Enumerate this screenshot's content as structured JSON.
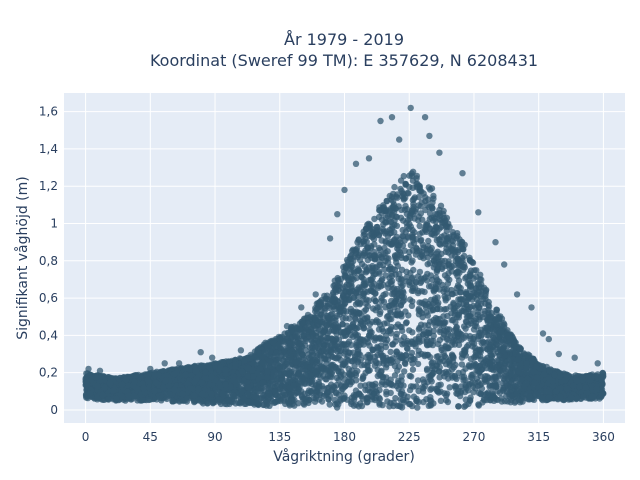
{
  "chart_data": {
    "type": "scatter",
    "title_line1": "År 1979 - 2019",
    "title_line2": "Koordinat (Sweref 99 TM): E 357629, N 6208431",
    "xlabel": "Vågriktning (grader)",
    "ylabel": "Signifikant våghöjd (m)",
    "xlim": [
      -15,
      375
    ],
    "ylim": [
      -0.07,
      1.7
    ],
    "x_ticks": [
      0,
      45,
      90,
      135,
      180,
      225,
      270,
      315,
      360
    ],
    "x_tick_labels": [
      "0",
      "45",
      "90",
      "135",
      "180",
      "225",
      "270",
      "315",
      "360"
    ],
    "y_ticks": [
      0,
      0.2,
      0.4,
      0.6,
      0.8,
      1,
      1.2,
      1.4,
      1.6
    ],
    "y_tick_labels": [
      "0",
      "0,2",
      "0,4",
      "0,6",
      "0,8",
      "1",
      "1,2",
      "1,4",
      "1,6"
    ],
    "grid": true,
    "colors": {
      "marker": "#335a72",
      "plot_background": "#e5ecf6",
      "grid": "#ffffff",
      "text": "#2a3f5f"
    },
    "envelope": {
      "x": [
        0,
        20,
        45,
        70,
        90,
        110,
        130,
        150,
        170,
        185,
        200,
        215,
        225,
        240,
        255,
        270,
        285,
        300,
        315,
        330,
        345,
        360
      ],
      "upper": [
        0.2,
        0.17,
        0.2,
        0.23,
        0.25,
        0.28,
        0.38,
        0.48,
        0.65,
        0.85,
        1.05,
        1.2,
        1.3,
        1.2,
        1.0,
        0.8,
        0.55,
        0.35,
        0.25,
        0.2,
        0.18,
        0.2
      ],
      "lower": [
        0.06,
        0.05,
        0.05,
        0.04,
        0.03,
        0.03,
        0.02,
        0.02,
        0.01,
        0.01,
        0.01,
        0.01,
        0.01,
        0.01,
        0.01,
        0.02,
        0.03,
        0.04,
        0.05,
        0.05,
        0.06,
        0.06
      ]
    },
    "outliers": [
      {
        "x": 205,
        "y": 1.55
      },
      {
        "x": 213,
        "y": 1.57
      },
      {
        "x": 226,
        "y": 1.62
      },
      {
        "x": 236,
        "y": 1.57
      },
      {
        "x": 218,
        "y": 1.45
      },
      {
        "x": 239,
        "y": 1.47
      },
      {
        "x": 246,
        "y": 1.38
      },
      {
        "x": 197,
        "y": 1.35
      },
      {
        "x": 188,
        "y": 1.32
      },
      {
        "x": 262,
        "y": 1.27
      },
      {
        "x": 180,
        "y": 1.18
      },
      {
        "x": 273,
        "y": 1.06
      },
      {
        "x": 285,
        "y": 0.9
      },
      {
        "x": 291,
        "y": 0.78
      },
      {
        "x": 310,
        "y": 0.55
      },
      {
        "x": 318,
        "y": 0.41
      },
      {
        "x": 322,
        "y": 0.38
      },
      {
        "x": 329,
        "y": 0.3
      },
      {
        "x": 340,
        "y": 0.28
      },
      {
        "x": 356,
        "y": 0.25
      },
      {
        "x": 65,
        "y": 0.25
      },
      {
        "x": 80,
        "y": 0.31
      },
      {
        "x": 88,
        "y": 0.28
      },
      {
        "x": 108,
        "y": 0.32
      },
      {
        "x": 125,
        "y": 0.36
      },
      {
        "x": 140,
        "y": 0.45
      },
      {
        "x": 150,
        "y": 0.55
      },
      {
        "x": 160,
        "y": 0.62
      },
      {
        "x": 2,
        "y": 0.22
      },
      {
        "x": 10,
        "y": 0.21
      },
      {
        "x": 45,
        "y": 0.22
      },
      {
        "x": 55,
        "y": 0.25
      },
      {
        "x": 300,
        "y": 0.62
      },
      {
        "x": 170,
        "y": 0.92
      },
      {
        "x": 175,
        "y": 1.05
      }
    ]
  }
}
